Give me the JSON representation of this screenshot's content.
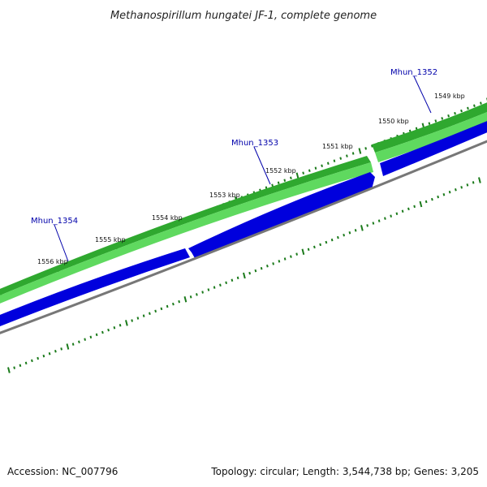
{
  "title": "Methanospirillum hungatei JF-1, complete genome",
  "footer": {
    "accession": "Accession: NC_007796",
    "summary": "Topology: circular; Length: 3,544,738 bp; Genes: 3,205"
  },
  "colors": {
    "forward_gene": "#2db52d",
    "forward_gene_highlight": "#66dd55",
    "reverse_gene": "#0000dd",
    "backbone": "#777777",
    "ticks": "#1a7a1a",
    "gene_label": "#0000aa"
  },
  "scale_labels": [
    "1549 kbp",
    "1550 kbp",
    "1551 kbp",
    "1552 kbp",
    "1553 kbp",
    "1554 kbp",
    "1555 kbp",
    "1556 kbp"
  ],
  "genes": [
    {
      "label": "Mhun_1352"
    },
    {
      "label": "Mhun_1353"
    },
    {
      "label": "Mhun_1354"
    }
  ]
}
